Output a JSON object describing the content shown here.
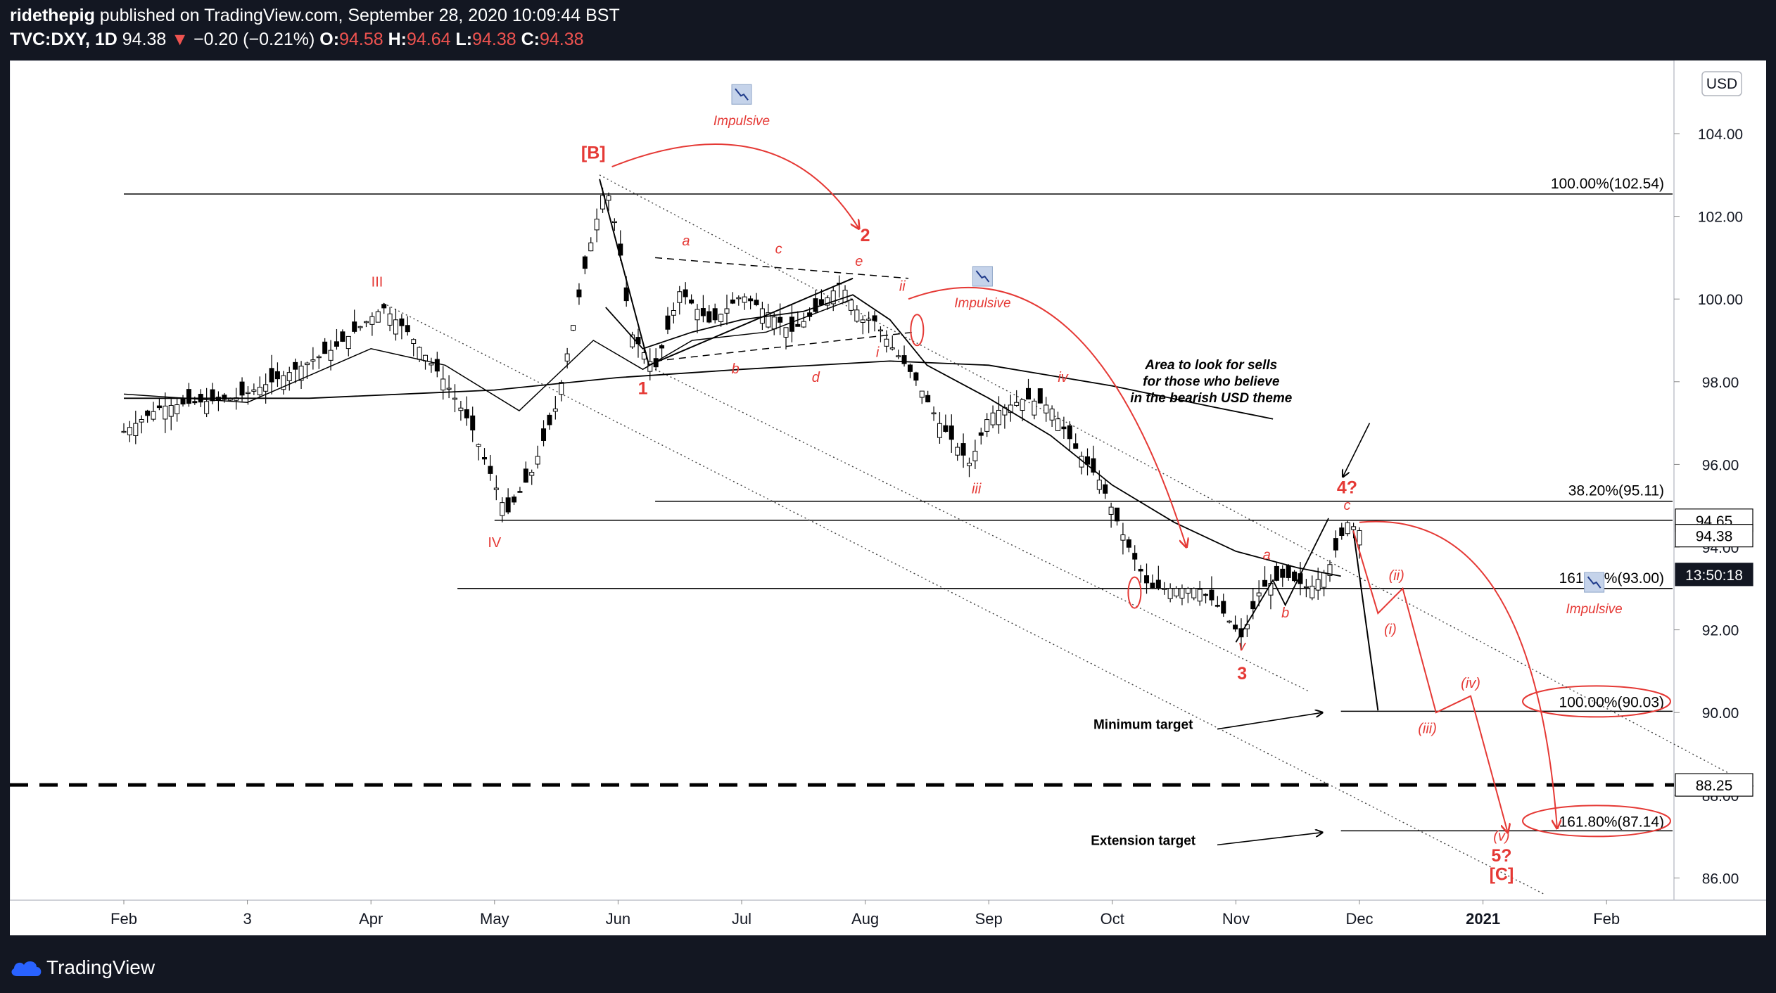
{
  "header": {
    "author": "ridethepig",
    "published": "published on TradingView.com, September 28, 2020 10:09:44 BST",
    "symbol": "TVC:DXY, 1D",
    "last": "94.38",
    "change": "−0.20 (−0.21%)",
    "o_label": "O:",
    "o": "94.58",
    "h_label": "H:",
    "h": "94.64",
    "l_label": "L:",
    "l": "94.38",
    "c_label": "C:",
    "c": "94.38"
  },
  "footer": {
    "brand": "TradingView"
  },
  "chart_data": {
    "type": "line",
    "currency": "USD",
    "x_ticks": [
      "Feb",
      "3",
      "Apr",
      "May",
      "Jun",
      "Jul",
      "Aug",
      "Sep",
      "Oct",
      "Nov",
      "Dec",
      "2021",
      "Feb"
    ],
    "y_ticks": [
      "104.00",
      "102.00",
      "100.00",
      "98.00",
      "96.00",
      "94.00",
      "92.00",
      "90.00",
      "88.00",
      "86.00"
    ],
    "ylim": [
      85.5,
      105.5
    ],
    "price_path": [
      {
        "t": 0,
        "v": 96.8
      },
      {
        "t": 0.3,
        "v": 97.4
      },
      {
        "t": 0.9,
        "v": 97.6
      },
      {
        "t": 1.2,
        "v": 98.0
      },
      {
        "t": 1.7,
        "v": 98.8
      },
      {
        "t": 2.1,
        "v": 99.8
      },
      {
        "t": 2.3,
        "v": 99.2
      },
      {
        "t": 2.6,
        "v": 98.0
      },
      {
        "t": 2.8,
        "v": 97.0
      },
      {
        "t": 3.1,
        "v": 94.8
      },
      {
        "t": 3.3,
        "v": 95.8
      },
      {
        "t": 3.5,
        "v": 97.4
      },
      {
        "t": 3.75,
        "v": 101.0
      },
      {
        "t": 3.9,
        "v": 102.8
      },
      {
        "t": 4.0,
        "v": 101.5
      },
      {
        "t": 4.1,
        "v": 99.2
      },
      {
        "t": 4.3,
        "v": 98.3
      },
      {
        "t": 4.5,
        "v": 100.2
      },
      {
        "t": 4.75,
        "v": 99.4
      },
      {
        "t": 5.0,
        "v": 100.1
      },
      {
        "t": 5.25,
        "v": 99.6
      },
      {
        "t": 5.4,
        "v": 99.2
      },
      {
        "t": 5.6,
        "v": 99.7
      },
      {
        "t": 5.8,
        "v": 100.4
      },
      {
        "t": 6.0,
        "v": 99.4
      },
      {
        "t": 6.05,
        "v": 99.6
      },
      {
        "t": 6.2,
        "v": 98.9
      },
      {
        "t": 6.4,
        "v": 98.1
      },
      {
        "t": 6.6,
        "v": 97.0
      },
      {
        "t": 6.85,
        "v": 96.0
      },
      {
        "t": 7.0,
        "v": 97.2
      },
      {
        "t": 7.3,
        "v": 97.6
      },
      {
        "t": 7.5,
        "v": 97.4
      },
      {
        "t": 7.7,
        "v": 96.4
      },
      {
        "t": 7.9,
        "v": 95.6
      },
      {
        "t": 8.1,
        "v": 94.2
      },
      {
        "t": 8.3,
        "v": 93.0
      },
      {
        "t": 8.5,
        "v": 93.0
      },
      {
        "t": 8.7,
        "v": 93.0
      },
      {
        "t": 8.85,
        "v": 92.6
      },
      {
        "t": 9.05,
        "v": 91.8
      },
      {
        "t": 9.2,
        "v": 93.0
      },
      {
        "t": 9.4,
        "v": 93.3
      },
      {
        "t": 9.6,
        "v": 93.0
      },
      {
        "t": 9.75,
        "v": 93.5
      },
      {
        "t": 9.9,
        "v": 94.6
      },
      {
        "t": 10.0,
        "v": 94.4
      }
    ],
    "ma_short": [
      {
        "t": 3.9,
        "v": 99.8
      },
      {
        "t": 4.2,
        "v": 98.8
      },
      {
        "t": 4.6,
        "v": 99.2
      },
      {
        "t": 5.0,
        "v": 99.5
      },
      {
        "t": 5.5,
        "v": 99.7
      },
      {
        "t": 5.9,
        "v": 100.1
      },
      {
        "t": 6.2,
        "v": 99.5
      },
      {
        "t": 6.5,
        "v": 98.4
      },
      {
        "t": 7.0,
        "v": 97.6
      },
      {
        "t": 7.5,
        "v": 96.7
      },
      {
        "t": 8.0,
        "v": 95.5
      },
      {
        "t": 8.5,
        "v": 94.6
      },
      {
        "t": 9.0,
        "v": 93.9
      },
      {
        "t": 9.5,
        "v": 93.5
      },
      {
        "t": 9.85,
        "v": 93.3
      }
    ],
    "ma_long": [
      {
        "t": 0,
        "v": 97.6
      },
      {
        "t": 1.5,
        "v": 97.6
      },
      {
        "t": 3.0,
        "v": 97.8
      },
      {
        "t": 4.0,
        "v": 98.1
      },
      {
        "t": 5.0,
        "v": 98.3
      },
      {
        "t": 6.2,
        "v": 98.5
      },
      {
        "t": 7.0,
        "v": 98.4
      },
      {
        "t": 8.0,
        "v": 97.9
      },
      {
        "t": 8.8,
        "v": 97.4
      },
      {
        "t": 9.3,
        "v": 97.1
      }
    ],
    "levels": [
      {
        "label": "100.00%(102.54)",
        "value": 102.54,
        "t0": 0,
        "circled": false
      },
      {
        "label": "38.20%(95.11)",
        "value": 95.11,
        "t0": 4.3,
        "circled": false
      },
      {
        "label": "161.80%(93.00)",
        "value": 93.0,
        "t0": 2.7,
        "circled": false
      },
      {
        "label": "100.00%(90.03)",
        "value": 90.03,
        "t0": 9.85,
        "circled": true
      },
      {
        "label": "161.80%(87.14)",
        "value": 87.14,
        "t0": 9.85,
        "circled": true
      }
    ],
    "iv_level": 94.65,
    "dashed_level": {
      "value": 88.25,
      "label": "88.25"
    },
    "price_boxes": [
      {
        "label": "94.65",
        "value": 94.65,
        "style": "light"
      },
      {
        "label": "94.38",
        "value": 94.38,
        "style": "light"
      },
      {
        "label": "13:50:18",
        "value": 93.0,
        "style": "dark"
      }
    ],
    "wave_labels": [
      {
        "text": "[B]",
        "t": 3.8,
        "v": 103.4,
        "color": "red",
        "bold": true,
        "italic": false
      },
      {
        "text": "III",
        "t": 2.05,
        "v": 100.3,
        "color": "red",
        "bold": false,
        "italic": false
      },
      {
        "text": "IV",
        "t": 3.0,
        "v": 94.0,
        "color": "red",
        "bold": false,
        "italic": false
      },
      {
        "text": "1",
        "t": 4.2,
        "v": 97.7,
        "color": "red",
        "bold": true,
        "italic": false
      },
      {
        "text": "2",
        "t": 6.0,
        "v": 101.4,
        "color": "red",
        "bold": true,
        "italic": false
      },
      {
        "text": "a",
        "t": 4.55,
        "v": 101.3,
        "color": "red",
        "bold": false,
        "italic": true
      },
      {
        "text": "b",
        "t": 4.95,
        "v": 98.2,
        "color": "red",
        "bold": false,
        "italic": true
      },
      {
        "text": "c",
        "t": 5.3,
        "v": 101.1,
        "color": "red",
        "bold": false,
        "italic": true
      },
      {
        "text": "d",
        "t": 5.6,
        "v": 98.0,
        "color": "red",
        "bold": false,
        "italic": true
      },
      {
        "text": "e",
        "t": 5.95,
        "v": 100.8,
        "color": "red",
        "bold": false,
        "italic": true
      },
      {
        "text": "i",
        "t": 6.1,
        "v": 98.6,
        "color": "red",
        "bold": false,
        "italic": true
      },
      {
        "text": "ii",
        "t": 6.3,
        "v": 100.2,
        "color": "red",
        "bold": false,
        "italic": true
      },
      {
        "text": "iii",
        "t": 6.9,
        "v": 95.3,
        "color": "red",
        "bold": false,
        "italic": true
      },
      {
        "text": "iv",
        "t": 7.6,
        "v": 98.0,
        "color": "red",
        "bold": false,
        "italic": true
      },
      {
        "text": "v",
        "t": 9.05,
        "v": 91.5,
        "color": "red",
        "bold": false,
        "italic": true
      },
      {
        "text": "3",
        "t": 9.05,
        "v": 90.8,
        "color": "red",
        "bold": true,
        "italic": false
      },
      {
        "text": "a",
        "t": 9.25,
        "v": 93.7,
        "color": "red",
        "bold": false,
        "italic": true
      },
      {
        "text": "b",
        "t": 9.4,
        "v": 92.3,
        "color": "red",
        "bold": false,
        "italic": true
      },
      {
        "text": "c",
        "t": 9.9,
        "v": 94.9,
        "color": "red",
        "bold": false,
        "italic": true
      },
      {
        "text": "4?",
        "t": 9.9,
        "v": 95.3,
        "color": "red",
        "bold": true,
        "italic": false
      },
      {
        "text": "(i)",
        "t": 10.25,
        "v": 91.9,
        "color": "red",
        "bold": false,
        "italic": true
      },
      {
        "text": "(ii)",
        "t": 10.3,
        "v": 93.2,
        "color": "red",
        "bold": false,
        "italic": true
      },
      {
        "text": "(iii)",
        "t": 10.55,
        "v": 89.5,
        "color": "red",
        "bold": false,
        "italic": true
      },
      {
        "text": "(iv)",
        "t": 10.9,
        "v": 90.6,
        "color": "red",
        "bold": false,
        "italic": true
      },
      {
        "text": "(v)",
        "t": 11.15,
        "v": 86.9,
        "color": "red",
        "bold": false,
        "italic": true
      },
      {
        "text": "5?",
        "t": 11.15,
        "v": 86.4,
        "color": "red",
        "bold": true,
        "italic": false
      },
      {
        "text": "[C]",
        "t": 11.15,
        "v": 85.95,
        "color": "red",
        "bold": true,
        "italic": false
      }
    ],
    "annotations": [
      {
        "text": "Impulsive",
        "t": 5.0,
        "v": 104.2,
        "icon": true
      },
      {
        "text": "Impulsive",
        "t": 6.95,
        "v": 99.8,
        "icon": true
      },
      {
        "text": "Impulsive",
        "t": 11.9,
        "v": 92.4,
        "icon": true
      },
      {
        "text": "Area to look for sells",
        "t": 8.8,
        "v": 98.3,
        "icon": false
      },
      {
        "text": "for those who believe",
        "t": 8.8,
        "v": 97.9,
        "icon": false
      },
      {
        "text": "in the bearish USD theme",
        "t": 8.8,
        "v": 97.5,
        "icon": false
      },
      {
        "text": "Minimum target",
        "t": 8.25,
        "v": 89.6,
        "icon": false
      },
      {
        "text": "Extension target",
        "t": 8.25,
        "v": 86.8,
        "icon": false
      }
    ]
  },
  "colors": {
    "red": "#e53935",
    "bg": "#ffffff",
    "axis_bg": "#ffffff",
    "dark_bg": "#131722"
  }
}
